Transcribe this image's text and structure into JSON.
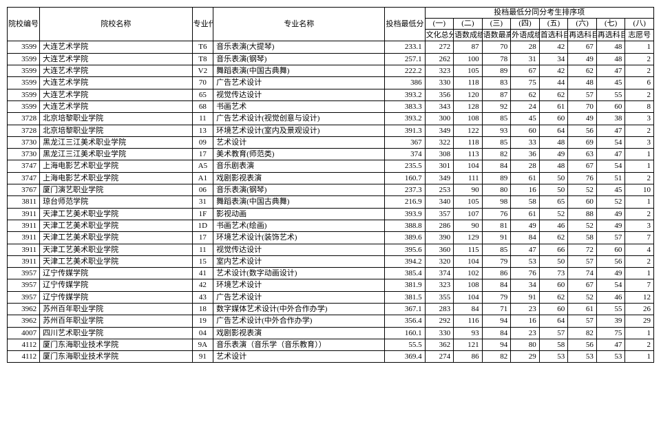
{
  "headers": {
    "main_group": "投档最低分同分考生排序项",
    "sub_nums": [
      "(一)",
      "(二)",
      "(三)",
      "(四)",
      "(五)",
      "(六)",
      "(七)",
      "(八)"
    ],
    "school_code": "院校编号",
    "school_name": "院校名称",
    "major_code": "专业代号",
    "major_name": "专业名称",
    "min_score": "投档最低分",
    "c1": "文化总分",
    "c2": "语数成绩",
    "c3": "语数最高成绩",
    "c4": "外语成绩",
    "c5": "首选科目成绩",
    "c6": "再选科目最高成绩",
    "c7": "再选科目次高成绩",
    "c8": "志愿号"
  },
  "rows": [
    {
      "code": "3599",
      "school": "大连艺术学院",
      "mcode": "T6",
      "major": "音乐表演(大提琴)",
      "score": "233.1",
      "c1": "272",
      "c2": "87",
      "c3": "70",
      "c4": "28",
      "c5": "42",
      "c6": "67",
      "c7": "48",
      "c8": "1"
    },
    {
      "code": "3599",
      "school": "大连艺术学院",
      "mcode": "T8",
      "major": "音乐表演(钢琴)",
      "score": "257.1",
      "c1": "262",
      "c2": "100",
      "c3": "78",
      "c4": "31",
      "c5": "34",
      "c6": "49",
      "c7": "48",
      "c8": "2"
    },
    {
      "code": "3599",
      "school": "大连艺术学院",
      "mcode": "V2",
      "major": "舞蹈表演(中国古典舞)",
      "score": "222.2",
      "c1": "323",
      "c2": "105",
      "c3": "89",
      "c4": "67",
      "c5": "42",
      "c6": "62",
      "c7": "47",
      "c8": "2"
    },
    {
      "code": "3599",
      "school": "大连艺术学院",
      "mcode": "70",
      "major": "广告艺术设计",
      "score": "386",
      "c1": "330",
      "c2": "118",
      "c3": "83",
      "c4": "75",
      "c5": "44",
      "c6": "48",
      "c7": "45",
      "c8": "6"
    },
    {
      "code": "3599",
      "school": "大连艺术学院",
      "mcode": "65",
      "major": "视觉传达设计",
      "score": "393.2",
      "c1": "356",
      "c2": "120",
      "c3": "87",
      "c4": "62",
      "c5": "62",
      "c6": "57",
      "c7": "55",
      "c8": "2"
    },
    {
      "code": "3599",
      "school": "大连艺术学院",
      "mcode": "68",
      "major": "书画艺术",
      "score": "383.3",
      "c1": "343",
      "c2": "128",
      "c3": "92",
      "c4": "24",
      "c5": "61",
      "c6": "70",
      "c7": "60",
      "c8": "8"
    },
    {
      "code": "3728",
      "school": "北京培黎职业学院",
      "mcode": "11",
      "major": "广告艺术设计(视觉创意与设计)",
      "score": "393.2",
      "c1": "300",
      "c2": "108",
      "c3": "85",
      "c4": "45",
      "c5": "60",
      "c6": "49",
      "c7": "38",
      "c8": "3"
    },
    {
      "code": "3728",
      "school": "北京培黎职业学院",
      "mcode": "13",
      "major": "环境艺术设计(室内及景观设计)",
      "score": "391.3",
      "c1": "349",
      "c2": "122",
      "c3": "93",
      "c4": "60",
      "c5": "64",
      "c6": "56",
      "c7": "47",
      "c8": "2"
    },
    {
      "code": "3730",
      "school": "黑龙江三江美术职业学院",
      "mcode": "09",
      "major": "艺术设计",
      "score": "367",
      "c1": "322",
      "c2": "118",
      "c3": "85",
      "c4": "33",
      "c5": "48",
      "c6": "69",
      "c7": "54",
      "c8": "3"
    },
    {
      "code": "3730",
      "school": "黑龙江三江美术职业学院",
      "mcode": "17",
      "major": "美术教育(师范类)",
      "score": "374",
      "c1": "308",
      "c2": "113",
      "c3": "82",
      "c4": "36",
      "c5": "49",
      "c6": "63",
      "c7": "47",
      "c8": "1"
    },
    {
      "code": "3747",
      "school": "上海电影艺术职业学院",
      "mcode": "A5",
      "major": "音乐剧表演",
      "score": "235.5",
      "c1": "301",
      "c2": "104",
      "c3": "84",
      "c4": "28",
      "c5": "48",
      "c6": "67",
      "c7": "54",
      "c8": "1"
    },
    {
      "code": "3747",
      "school": "上海电影艺术职业学院",
      "mcode": "A1",
      "major": "戏剧影视表演",
      "score": "160.7",
      "c1": "349",
      "c2": "111",
      "c3": "89",
      "c4": "61",
      "c5": "50",
      "c6": "76",
      "c7": "51",
      "c8": "2"
    },
    {
      "code": "3767",
      "school": "厦门演艺职业学院",
      "mcode": "06",
      "major": "音乐表演(钢琴)",
      "score": "237.3",
      "c1": "253",
      "c2": "90",
      "c3": "80",
      "c4": "16",
      "c5": "50",
      "c6": "52",
      "c7": "45",
      "c8": "10"
    },
    {
      "code": "3811",
      "school": "琼台师范学院",
      "mcode": "31",
      "major": "舞蹈表演(中国古典舞)",
      "score": "216.9",
      "c1": "340",
      "c2": "105",
      "c3": "98",
      "c4": "58",
      "c5": "65",
      "c6": "60",
      "c7": "52",
      "c8": "1"
    },
    {
      "code": "3911",
      "school": "天津工艺美术职业学院",
      "mcode": "1F",
      "major": "影视动画",
      "score": "393.9",
      "c1": "357",
      "c2": "107",
      "c3": "76",
      "c4": "61",
      "c5": "52",
      "c6": "88",
      "c7": "49",
      "c8": "2"
    },
    {
      "code": "3911",
      "school": "天津工艺美术职业学院",
      "mcode": "1D",
      "major": "书画艺术(绘画)",
      "score": "388.8",
      "c1": "286",
      "c2": "90",
      "c3": "81",
      "c4": "49",
      "c5": "46",
      "c6": "52",
      "c7": "49",
      "c8": "3"
    },
    {
      "code": "3911",
      "school": "天津工艺美术职业学院",
      "mcode": "17",
      "major": "环境艺术设计(装饰艺术)",
      "score": "389.6",
      "c1": "390",
      "c2": "129",
      "c3": "91",
      "c4": "84",
      "c5": "62",
      "c6": "58",
      "c7": "57",
      "c8": "7"
    },
    {
      "code": "3911",
      "school": "天津工艺美术职业学院",
      "mcode": "11",
      "major": "视觉传达设计",
      "score": "395.6",
      "c1": "360",
      "c2": "115",
      "c3": "85",
      "c4": "47",
      "c5": "66",
      "c6": "72",
      "c7": "60",
      "c8": "4"
    },
    {
      "code": "3911",
      "school": "天津工艺美术职业学院",
      "mcode": "15",
      "major": "室内艺术设计",
      "score": "394.2",
      "c1": "320",
      "c2": "104",
      "c3": "79",
      "c4": "53",
      "c5": "50",
      "c6": "57",
      "c7": "56",
      "c8": "2"
    },
    {
      "code": "3957",
      "school": "辽宁传媒学院",
      "mcode": "41",
      "major": "艺术设计(数字动画设计)",
      "score": "385.4",
      "c1": "374",
      "c2": "102",
      "c3": "86",
      "c4": "76",
      "c5": "73",
      "c6": "74",
      "c7": "49",
      "c8": "1"
    },
    {
      "code": "3957",
      "school": "辽宁传媒学院",
      "mcode": "42",
      "major": "环境艺术设计",
      "score": "381.9",
      "c1": "323",
      "c2": "108",
      "c3": "84",
      "c4": "34",
      "c5": "60",
      "c6": "67",
      "c7": "54",
      "c8": "7"
    },
    {
      "code": "3957",
      "school": "辽宁传媒学院",
      "mcode": "43",
      "major": "广告艺术设计",
      "score": "381.5",
      "c1": "355",
      "c2": "104",
      "c3": "79",
      "c4": "91",
      "c5": "62",
      "c6": "52",
      "c7": "46",
      "c8": "12"
    },
    {
      "code": "3962",
      "school": "苏州百年职业学院",
      "mcode": "18",
      "major": "数字媒体艺术设计(中外合作办学)",
      "score": "367.1",
      "c1": "283",
      "c2": "84",
      "c3": "71",
      "c4": "23",
      "c5": "60",
      "c6": "61",
      "c7": "55",
      "c8": "26"
    },
    {
      "code": "3962",
      "school": "苏州百年职业学院",
      "mcode": "19",
      "major": "广告艺术设计(中外合作办学)",
      "score": "356.4",
      "c1": "292",
      "c2": "116",
      "c3": "94",
      "c4": "16",
      "c5": "64",
      "c6": "57",
      "c7": "39",
      "c8": "29"
    },
    {
      "code": "4007",
      "school": "四川艺术职业学院",
      "mcode": "04",
      "major": "戏剧影视表演",
      "score": "160.1",
      "c1": "330",
      "c2": "93",
      "c3": "84",
      "c4": "23",
      "c5": "57",
      "c6": "82",
      "c7": "75",
      "c8": "1"
    },
    {
      "code": "4112",
      "school": "厦门东海职业技术学院",
      "mcode": "9A",
      "major": "音乐表演（音乐学（音乐教育））",
      "score": "55.5",
      "c1": "362",
      "c2": "121",
      "c3": "94",
      "c4": "80",
      "c5": "58",
      "c6": "56",
      "c7": "47",
      "c8": "2"
    },
    {
      "code": "4112",
      "school": "厦门东海职业技术学院",
      "mcode": "91",
      "major": "艺术设计",
      "score": "369.4",
      "c1": "274",
      "c2": "86",
      "c3": "82",
      "c4": "29",
      "c5": "53",
      "c6": "53",
      "c7": "53",
      "c8": "1"
    }
  ]
}
